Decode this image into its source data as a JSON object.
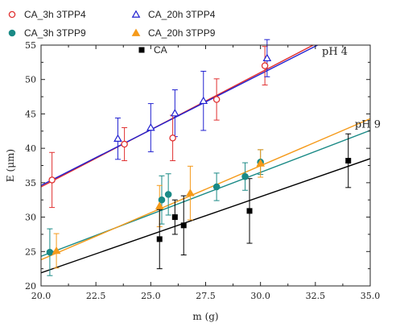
{
  "chart_data": {
    "type": "scatter",
    "xlabel": "m (g)",
    "ylabel": "E (μm)",
    "xlim": [
      20.0,
      35.0
    ],
    "ylim": [
      20,
      55
    ],
    "x_ticks": [
      "20.0",
      "22.5",
      "25.0",
      "27.5",
      "30.0",
      "32.5",
      "35.0"
    ],
    "y_ticks": [
      "20",
      "25",
      "30",
      "35",
      "40",
      "45",
      "50",
      "55"
    ],
    "grid": false,
    "legend_position": "top-left",
    "annotations": [
      {
        "text": "pH 4",
        "x": 32.8,
        "y": 53.6
      },
      {
        "text": "pH 9",
        "x": 34.3,
        "y": 43.0
      }
    ],
    "series": [
      {
        "name": "CA_3h 3TPP4",
        "marker": "circle-open",
        "color": "#e03030",
        "points": [
          {
            "x": 20.5,
            "y": 35.4,
            "err": 4.0
          },
          {
            "x": 23.8,
            "y": 40.6,
            "err": 2.4
          },
          {
            "x": 26.0,
            "y": 41.5,
            "err": 3.3
          },
          {
            "x": 28.0,
            "y": 47.1,
            "err": 3.0
          },
          {
            "x": 30.2,
            "y": 52.0,
            "err": 2.8
          }
        ],
        "fit": {
          "x": [
            20.0,
            32.4
          ],
          "y": [
            34.4,
            55.0
          ]
        }
      },
      {
        "name": "CA_20h 3TPP4",
        "marker": "triangle-open",
        "color": "#2020d0",
        "points": [
          {
            "x": 23.5,
            "y": 41.4,
            "err": 3.0
          },
          {
            "x": 25.0,
            "y": 43.0,
            "err": 3.5
          },
          {
            "x": 26.1,
            "y": 45.1,
            "err": 3.4
          },
          {
            "x": 27.4,
            "y": 46.9,
            "err": 4.3
          },
          {
            "x": 30.3,
            "y": 53.1,
            "err": 2.7
          }
        ],
        "fit": {
          "x": [
            20.0,
            32.6
          ],
          "y": [
            34.6,
            55.0
          ]
        }
      },
      {
        "name": "CA_3h 3TPP9",
        "marker": "circle-filled",
        "color": "#1a8a86",
        "points": [
          {
            "x": 20.4,
            "y": 24.9,
            "err": 3.4
          },
          {
            "x": 25.5,
            "y": 32.5,
            "err": 3.5
          },
          {
            "x": 25.8,
            "y": 33.3,
            "err": 3.0
          },
          {
            "x": 28.0,
            "y": 34.4,
            "err": 2.0
          },
          {
            "x": 29.3,
            "y": 35.9,
            "err": 2.0
          },
          {
            "x": 30.0,
            "y": 38.0,
            "err": 1.8
          }
        ],
        "fit": {
          "x": [
            20.0,
            35.0
          ],
          "y": [
            24.3,
            42.6
          ]
        }
      },
      {
        "name": "CA_20h 3TPP9",
        "marker": "triangle-filled",
        "color": "#f59a1a",
        "points": [
          {
            "x": 20.7,
            "y": 25.1,
            "err": 2.5
          },
          {
            "x": 25.4,
            "y": 31.6,
            "err": 3.0
          },
          {
            "x": 26.8,
            "y": 33.5,
            "err": 3.9
          },
          {
            "x": 30.0,
            "y": 37.8,
            "err": 2.0
          }
        ],
        "fit": {
          "x": [
            20.0,
            35.0
          ],
          "y": [
            23.8,
            44.3
          ]
        }
      },
      {
        "name": "CA",
        "marker": "square-filled",
        "color": "#000000",
        "points": [
          {
            "x": 25.4,
            "y": 26.8,
            "err": 4.3
          },
          {
            "x": 26.1,
            "y": 30.0,
            "err": 2.5
          },
          {
            "x": 26.5,
            "y": 28.8,
            "err": 4.3
          },
          {
            "x": 29.5,
            "y": 30.9,
            "err": 4.7
          },
          {
            "x": 34.0,
            "y": 38.2,
            "err": 3.9
          }
        ],
        "fit": {
          "x": [
            20.0,
            35.0
          ],
          "y": [
            21.9,
            38.5
          ]
        }
      }
    ]
  }
}
